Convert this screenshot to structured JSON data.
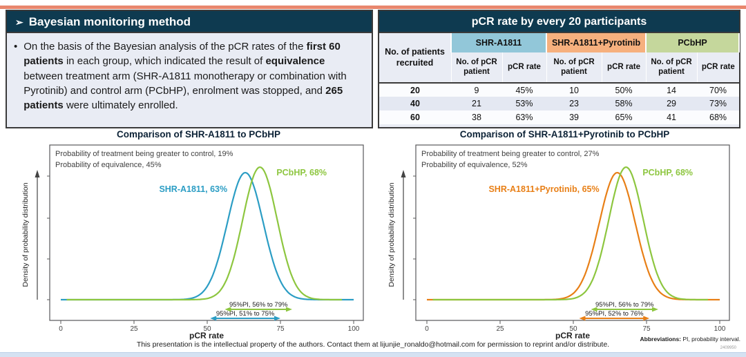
{
  "page": {
    "footer": "This presentation is the intellectual property of the authors. Contact them at lijunjie_ronaldo@hotmail.com for permission to reprint and/or distribute.",
    "abbreviations_label": "Abbreviations:",
    "abbreviations_text": " PI, probability interval.",
    "slide_number": "2409950",
    "colors": {
      "top_accent": "#e8866c",
      "header_teal": "#0e3a50",
      "panel_bg": "#e9ecf4",
      "bottom_bar": "#d5e2f2"
    }
  },
  "left_panel": {
    "header_arrow": "➢",
    "header": "Bayesian monitoring method",
    "bullet_marker": "•",
    "bullet_segments": [
      {
        "text": "On the basis of the Bayesian analysis of the pCR rates of the ",
        "bold": false
      },
      {
        "text": "first 60 patients",
        "bold": true
      },
      {
        "text": " in each group, which indicated the result of ",
        "bold": false
      },
      {
        "text": "equivalence",
        "bold": true
      },
      {
        "text": " between treatment arm (SHR-A1811 monotherapy or combination with Pyrotinib) and control arm (PCbHP), enrolment was stopped, and ",
        "bold": false
      },
      {
        "text": "265 patients",
        "bold": true
      },
      {
        "text": " were ultimately enrolled.",
        "bold": false
      }
    ]
  },
  "table": {
    "title": "pCR rate by every 20 participants",
    "row_header": "No. of patients recruited",
    "groups": [
      {
        "label": "SHR-A1811",
        "color": "#92c7d9"
      },
      {
        "label": "SHR-A1811+Pyrotinib",
        "color": "#f6b07e"
      },
      {
        "label": "PCbHP",
        "color": "#c5d79c"
      }
    ],
    "subheaders": [
      "No. of pCR patient",
      "pCR rate"
    ],
    "rows": [
      {
        "recruited": "20",
        "values": [
          "9",
          "45%",
          "10",
          "50%",
          "14",
          "70%"
        ]
      },
      {
        "recruited": "40",
        "values": [
          "21",
          "53%",
          "23",
          "58%",
          "29",
          "73%"
        ]
      },
      {
        "recruited": "60",
        "values": [
          "38",
          "63%",
          "39",
          "65%",
          "41",
          "68%"
        ]
      }
    ]
  },
  "chart_data": [
    {
      "type": "line",
      "title": "Comparison of SHR-A1811 to PCbHP",
      "annotations": [
        "Probability of treatment being greater to control, 19%",
        "Probability of equivalence, 45%"
      ],
      "xlabel": "pCR rate",
      "ylabel": "Density of probability distribution",
      "xlim": [
        0,
        100
      ],
      "xticks": [
        0,
        25,
        50,
        75,
        100
      ],
      "series": [
        {
          "name": "SHR-A1811",
          "label": "SHR-A1811, 63%",
          "mean": 63,
          "pi_low": 51,
          "pi_high": 75,
          "pi_label": "95%PI, 51% to 75%",
          "color": "#2b9dc4"
        },
        {
          "name": "PCbHP",
          "label": "PCbHP, 68%",
          "mean": 68,
          "pi_low": 56,
          "pi_high": 79,
          "pi_label": "95%PI, 56% to 79%",
          "color": "#8dc63f"
        }
      ]
    },
    {
      "type": "line",
      "title": "Comparison of SHR-A1811+Pyrotinib to PCbHP",
      "annotations": [
        "Probability of treatment being greater to control, 27%",
        "Probability of equivalence, 52%"
      ],
      "xlabel": "pCR rate",
      "ylabel": "Density of probability distribution",
      "xlim": [
        0,
        100
      ],
      "xticks": [
        0,
        25,
        50,
        75,
        100
      ],
      "series": [
        {
          "name": "SHR-A1811+Pyrotinib",
          "label": "SHR-A1811+Pyrotinib, 65%",
          "mean": 65,
          "pi_low": 52,
          "pi_high": 76,
          "pi_label": "95%PI, 52% to 76%",
          "color": "#e87f16"
        },
        {
          "name": "PCbHP",
          "label": "PCbHP, 68%",
          "mean": 68,
          "pi_low": 56,
          "pi_high": 79,
          "pi_label": "95%PI, 56% to 79%",
          "color": "#8dc63f"
        }
      ]
    }
  ]
}
